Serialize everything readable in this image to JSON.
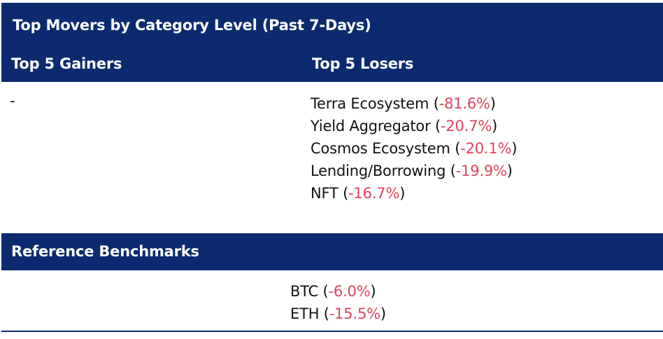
{
  "header": {
    "title": "Top Movers by Category Level (Past 7-Days)",
    "gainers_heading": "Top 5 Gainers",
    "losers_heading": "Top 5 Losers"
  },
  "gainers": {
    "placeholder": "-"
  },
  "losers": [
    {
      "name": "Terra Ecosystem",
      "change": "-81.6%"
    },
    {
      "name": "Yield Aggregator",
      "change": "-20.7%"
    },
    {
      "name": "Cosmos Ecosystem",
      "change": "-20.1%"
    },
    {
      "name": "Lending/Borrowing",
      "change": "-19.9%"
    },
    {
      "name": "NFT",
      "change": "-16.7%"
    }
  ],
  "benchmarks": {
    "heading": "Reference Benchmarks",
    "items": [
      {
        "name": "BTC",
        "change": "-6.0%"
      },
      {
        "name": "ETH",
        "change": "-15.5%"
      }
    ]
  },
  "colors": {
    "header_bg": "#0b2a6f",
    "negative": "#e0445a"
  }
}
